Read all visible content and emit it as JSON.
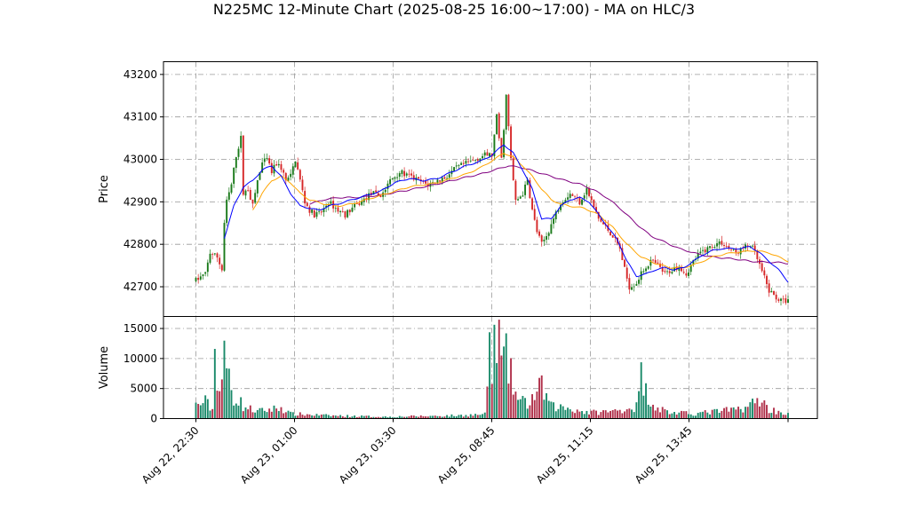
{
  "chart_data": {
    "type": "candlestick",
    "title": "N225MC 12-Minute Chart (2025-08-25 16:00~17:00) - MA on HLC/3",
    "colors": {
      "up": "#1a7a1a",
      "down": "#d62728",
      "ma_fast": "#0000ff",
      "ma_mid": "#ffa500",
      "ma_slow": "#800080",
      "vol_up": "#1a8a6a",
      "vol_down": "#b0304a"
    },
    "x_tick_labels": [
      "Aug 22, 22:30",
      "Aug 23, 01:00",
      "Aug 23, 03:30",
      "Aug 25, 08:45",
      "Aug 25, 11:15",
      "Aug 25, 13:45"
    ],
    "price_panel": {
      "ylabel": "Price",
      "ylim": [
        42630,
        43230
      ],
      "yticks": [
        42700,
        42800,
        42900,
        43000,
        43100,
        43200
      ],
      "grid": true
    },
    "volume_panel": {
      "ylabel": "Volume",
      "ylim": [
        0,
        17000
      ],
      "yticks": [
        0,
        5000,
        10000,
        15000
      ],
      "grid": true
    },
    "price_anchors": [
      [
        0,
        42715
      ],
      [
        4,
        42730
      ],
      [
        6,
        42780
      ],
      [
        9,
        42770
      ],
      [
        11,
        42740
      ],
      [
        12,
        42850
      ],
      [
        13,
        42900
      ],
      [
        15,
        42940
      ],
      [
        17,
        43010
      ],
      [
        19,
        43050
      ],
      [
        20,
        42920
      ],
      [
        22,
        42930
      ],
      [
        24,
        42890
      ],
      [
        26,
        42950
      ],
      [
        28,
        42990
      ],
      [
        30,
        43000
      ],
      [
        32,
        42970
      ],
      [
        34,
        42990
      ],
      [
        36,
        42980
      ],
      [
        38,
        42950
      ],
      [
        40,
        42960
      ],
      [
        42,
        43000
      ],
      [
        44,
        42950
      ],
      [
        46,
        42900
      ],
      [
        48,
        42880
      ],
      [
        50,
        42870
      ],
      [
        53,
        42875
      ],
      [
        56,
        42900
      ],
      [
        60,
        42880
      ],
      [
        63,
        42870
      ],
      [
        66,
        42885
      ],
      [
        70,
        42900
      ],
      [
        74,
        42920
      ],
      [
        78,
        42915
      ],
      [
        80,
        42930
      ],
      [
        82,
        42950
      ],
      [
        86,
        42970
      ],
      [
        90,
        42960
      ],
      [
        94,
        42950
      ],
      [
        98,
        42940
      ],
      [
        102,
        42950
      ],
      [
        106,
        42960
      ],
      [
        110,
        42980
      ],
      [
        114,
        42990
      ],
      [
        118,
        43000
      ],
      [
        122,
        43010
      ],
      [
        125,
        43010
      ],
      [
        127,
        43100
      ],
      [
        129,
        43000
      ],
      [
        131,
        43150
      ],
      [
        133,
        43000
      ],
      [
        135,
        42900
      ],
      [
        138,
        42920
      ],
      [
        140,
        42950
      ],
      [
        142,
        42880
      ],
      [
        144,
        42830
      ],
      [
        146,
        42800
      ],
      [
        148,
        42820
      ],
      [
        151,
        42860
      ],
      [
        154,
        42900
      ],
      [
        158,
        42920
      ],
      [
        162,
        42900
      ],
      [
        165,
        42930
      ],
      [
        167,
        42900
      ],
      [
        170,
        42860
      ],
      [
        173,
        42840
      ],
      [
        176,
        42820
      ],
      [
        179,
        42790
      ],
      [
        181,
        42740
      ],
      [
        183,
        42700
      ],
      [
        186,
        42710
      ],
      [
        189,
        42740
      ],
      [
        192,
        42760
      ],
      [
        195,
        42750
      ],
      [
        198,
        42730
      ],
      [
        201,
        42740
      ],
      [
        204,
        42750
      ],
      [
        207,
        42730
      ],
      [
        210,
        42760
      ],
      [
        213,
        42780
      ],
      [
        216,
        42790
      ],
      [
        219,
        42800
      ],
      [
        222,
        42805
      ],
      [
        225,
        42790
      ],
      [
        228,
        42780
      ],
      [
        231,
        42790
      ],
      [
        234,
        42800
      ],
      [
        236,
        42780
      ],
      [
        238,
        42750
      ],
      [
        240,
        42720
      ],
      [
        242,
        42690
      ],
      [
        244,
        42680
      ],
      [
        246,
        42670
      ],
      [
        248,
        42665
      ],
      [
        250,
        42670
      ]
    ],
    "volume_anchors": [
      [
        0,
        2200
      ],
      [
        4,
        2800
      ],
      [
        7,
        1500
      ],
      [
        8,
        11000
      ],
      [
        10,
        4500
      ],
      [
        12,
        9500
      ],
      [
        14,
        7000
      ],
      [
        16,
        3500
      ],
      [
        18,
        3200
      ],
      [
        20,
        2000
      ],
      [
        26,
        1200
      ],
      [
        36,
        1800
      ],
      [
        40,
        800
      ],
      [
        56,
        500
      ],
      [
        80,
        300
      ],
      [
        110,
        500
      ],
      [
        122,
        700
      ],
      [
        124,
        12500
      ],
      [
        125,
        7000
      ],
      [
        127,
        15800
      ],
      [
        129,
        9500
      ],
      [
        131,
        9800
      ],
      [
        133,
        7000
      ],
      [
        136,
        3000
      ],
      [
        140,
        2500
      ],
      [
        146,
        5200
      ],
      [
        150,
        2000
      ],
      [
        156,
        1800
      ],
      [
        166,
        1000
      ],
      [
        176,
        1200
      ],
      [
        186,
        2000
      ],
      [
        188,
        7000
      ],
      [
        190,
        4500
      ],
      [
        194,
        2000
      ],
      [
        200,
        1000
      ],
      [
        210,
        800
      ],
      [
        220,
        1200
      ],
      [
        228,
        1500
      ],
      [
        234,
        2200
      ],
      [
        238,
        3300
      ],
      [
        242,
        1500
      ],
      [
        246,
        1200
      ],
      [
        250,
        700
      ]
    ],
    "ma_fast_anchors": [
      [
        12,
        42815
      ],
      [
        16,
        42890
      ],
      [
        20,
        42935
      ],
      [
        24,
        42950
      ],
      [
        28,
        42975
      ],
      [
        32,
        42985
      ],
      [
        36,
        42960
      ],
      [
        40,
        42920
      ],
      [
        44,
        42890
      ],
      [
        48,
        42885
      ],
      [
        52,
        42880
      ],
      [
        56,
        42890
      ],
      [
        60,
        42895
      ],
      [
        66,
        42905
      ],
      [
        72,
        42915
      ],
      [
        78,
        42925
      ],
      [
        84,
        42945
      ],
      [
        90,
        42955
      ],
      [
        96,
        42950
      ],
      [
        102,
        42955
      ],
      [
        108,
        42970
      ],
      [
        114,
        42985
      ],
      [
        120,
        42995
      ],
      [
        125,
        43010
      ],
      [
        130,
        43035
      ],
      [
        134,
        43015
      ],
      [
        138,
        42975
      ],
      [
        142,
        42930
      ],
      [
        146,
        42860
      ],
      [
        150,
        42860
      ],
      [
        154,
        42890
      ],
      [
        158,
        42905
      ],
      [
        162,
        42910
      ],
      [
        166,
        42900
      ],
      [
        170,
        42870
      ],
      [
        174,
        42840
      ],
      [
        178,
        42810
      ],
      [
        182,
        42760
      ],
      [
        186,
        42725
      ],
      [
        190,
        42730
      ],
      [
        194,
        42740
      ],
      [
        198,
        42745
      ],
      [
        202,
        42740
      ],
      [
        206,
        42745
      ],
      [
        210,
        42760
      ],
      [
        214,
        42775
      ],
      [
        218,
        42785
      ],
      [
        222,
        42790
      ],
      [
        226,
        42790
      ],
      [
        230,
        42790
      ],
      [
        234,
        42795
      ],
      [
        238,
        42780
      ],
      [
        242,
        42760
      ],
      [
        246,
        42740
      ],
      [
        250,
        42712
      ]
    ],
    "ma_mid_anchors": [
      [
        24,
        42880
      ],
      [
        28,
        42920
      ],
      [
        32,
        42950
      ],
      [
        36,
        42960
      ],
      [
        40,
        42945
      ],
      [
        44,
        42920
      ],
      [
        48,
        42905
      ],
      [
        54,
        42895
      ],
      [
        60,
        42890
      ],
      [
        66,
        42895
      ],
      [
        72,
        42905
      ],
      [
        78,
        42915
      ],
      [
        84,
        42925
      ],
      [
        90,
        42935
      ],
      [
        96,
        42940
      ],
      [
        102,
        42945
      ],
      [
        108,
        42955
      ],
      [
        114,
        42965
      ],
      [
        120,
        42980
      ],
      [
        126,
        43000
      ],
      [
        130,
        43015
      ],
      [
        134,
        43005
      ],
      [
        138,
        42985
      ],
      [
        142,
        42960
      ],
      [
        146,
        42930
      ],
      [
        150,
        42905
      ],
      [
        154,
        42895
      ],
      [
        158,
        42890
      ],
      [
        164,
        42885
      ],
      [
        170,
        42870
      ],
      [
        176,
        42840
      ],
      [
        182,
        42800
      ],
      [
        188,
        42770
      ],
      [
        194,
        42755
      ],
      [
        200,
        42745
      ],
      [
        206,
        42745
      ],
      [
        212,
        42755
      ],
      [
        218,
        42770
      ],
      [
        224,
        42778
      ],
      [
        230,
        42782
      ],
      [
        236,
        42785
      ],
      [
        242,
        42780
      ],
      [
        246,
        42770
      ],
      [
        250,
        42760
      ]
    ],
    "ma_slow_anchors": [
      [
        48,
        42895
      ],
      [
        54,
        42905
      ],
      [
        60,
        42910
      ],
      [
        66,
        42910
      ],
      [
        72,
        42912
      ],
      [
        78,
        42916
      ],
      [
        84,
        42922
      ],
      [
        90,
        42928
      ],
      [
        96,
        42935
      ],
      [
        102,
        42942
      ],
      [
        108,
        42950
      ],
      [
        114,
        42958
      ],
      [
        120,
        42965
      ],
      [
        126,
        42975
      ],
      [
        132,
        42985
      ],
      [
        138,
        42980
      ],
      [
        144,
        42970
      ],
      [
        150,
        42960
      ],
      [
        156,
        42950
      ],
      [
        162,
        42942
      ],
      [
        168,
        42928
      ],
      [
        174,
        42908
      ],
      [
        180,
        42880
      ],
      [
        186,
        42848
      ],
      [
        192,
        42820
      ],
      [
        198,
        42805
      ],
      [
        204,
        42790
      ],
      [
        210,
        42780
      ],
      [
        216,
        42772
      ],
      [
        222,
        42768
      ],
      [
        228,
        42765
      ],
      [
        234,
        42760
      ],
      [
        240,
        42758
      ],
      [
        246,
        42757
      ],
      [
        250,
        42755
      ]
    ]
  }
}
